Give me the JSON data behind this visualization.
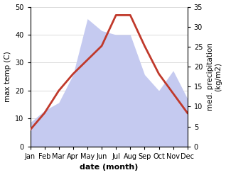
{
  "months": [
    "Jan",
    "Feb",
    "Mar",
    "Apr",
    "May",
    "Jun",
    "Jul",
    "Aug",
    "Sep",
    "Oct",
    "Nov",
    "Dec"
  ],
  "temperature": [
    6,
    12,
    20,
    26,
    31,
    36,
    47,
    47,
    36,
    26,
    19,
    12
  ],
  "precipitation": [
    6,
    9,
    11,
    18,
    32,
    29,
    28,
    28,
    18,
    14,
    19,
    12
  ],
  "temp_ylim": [
    0,
    50
  ],
  "precip_ylim": [
    0,
    35
  ],
  "temp_yticks": [
    0,
    10,
    20,
    30,
    40,
    50
  ],
  "precip_yticks": [
    0,
    5,
    10,
    15,
    20,
    25,
    30,
    35
  ],
  "temp_color": "#c0392b",
  "precip_fill_color": "#c5caf0",
  "xlabel": "date (month)",
  "ylabel_left": "max temp (C)",
  "ylabel_right": "med. precipitation\n(kg/m2)",
  "bg_color": "#ffffff",
  "grid_color": "#cccccc",
  "label_fontsize": 7.5,
  "tick_fontsize": 7,
  "xlabel_fontsize": 8
}
